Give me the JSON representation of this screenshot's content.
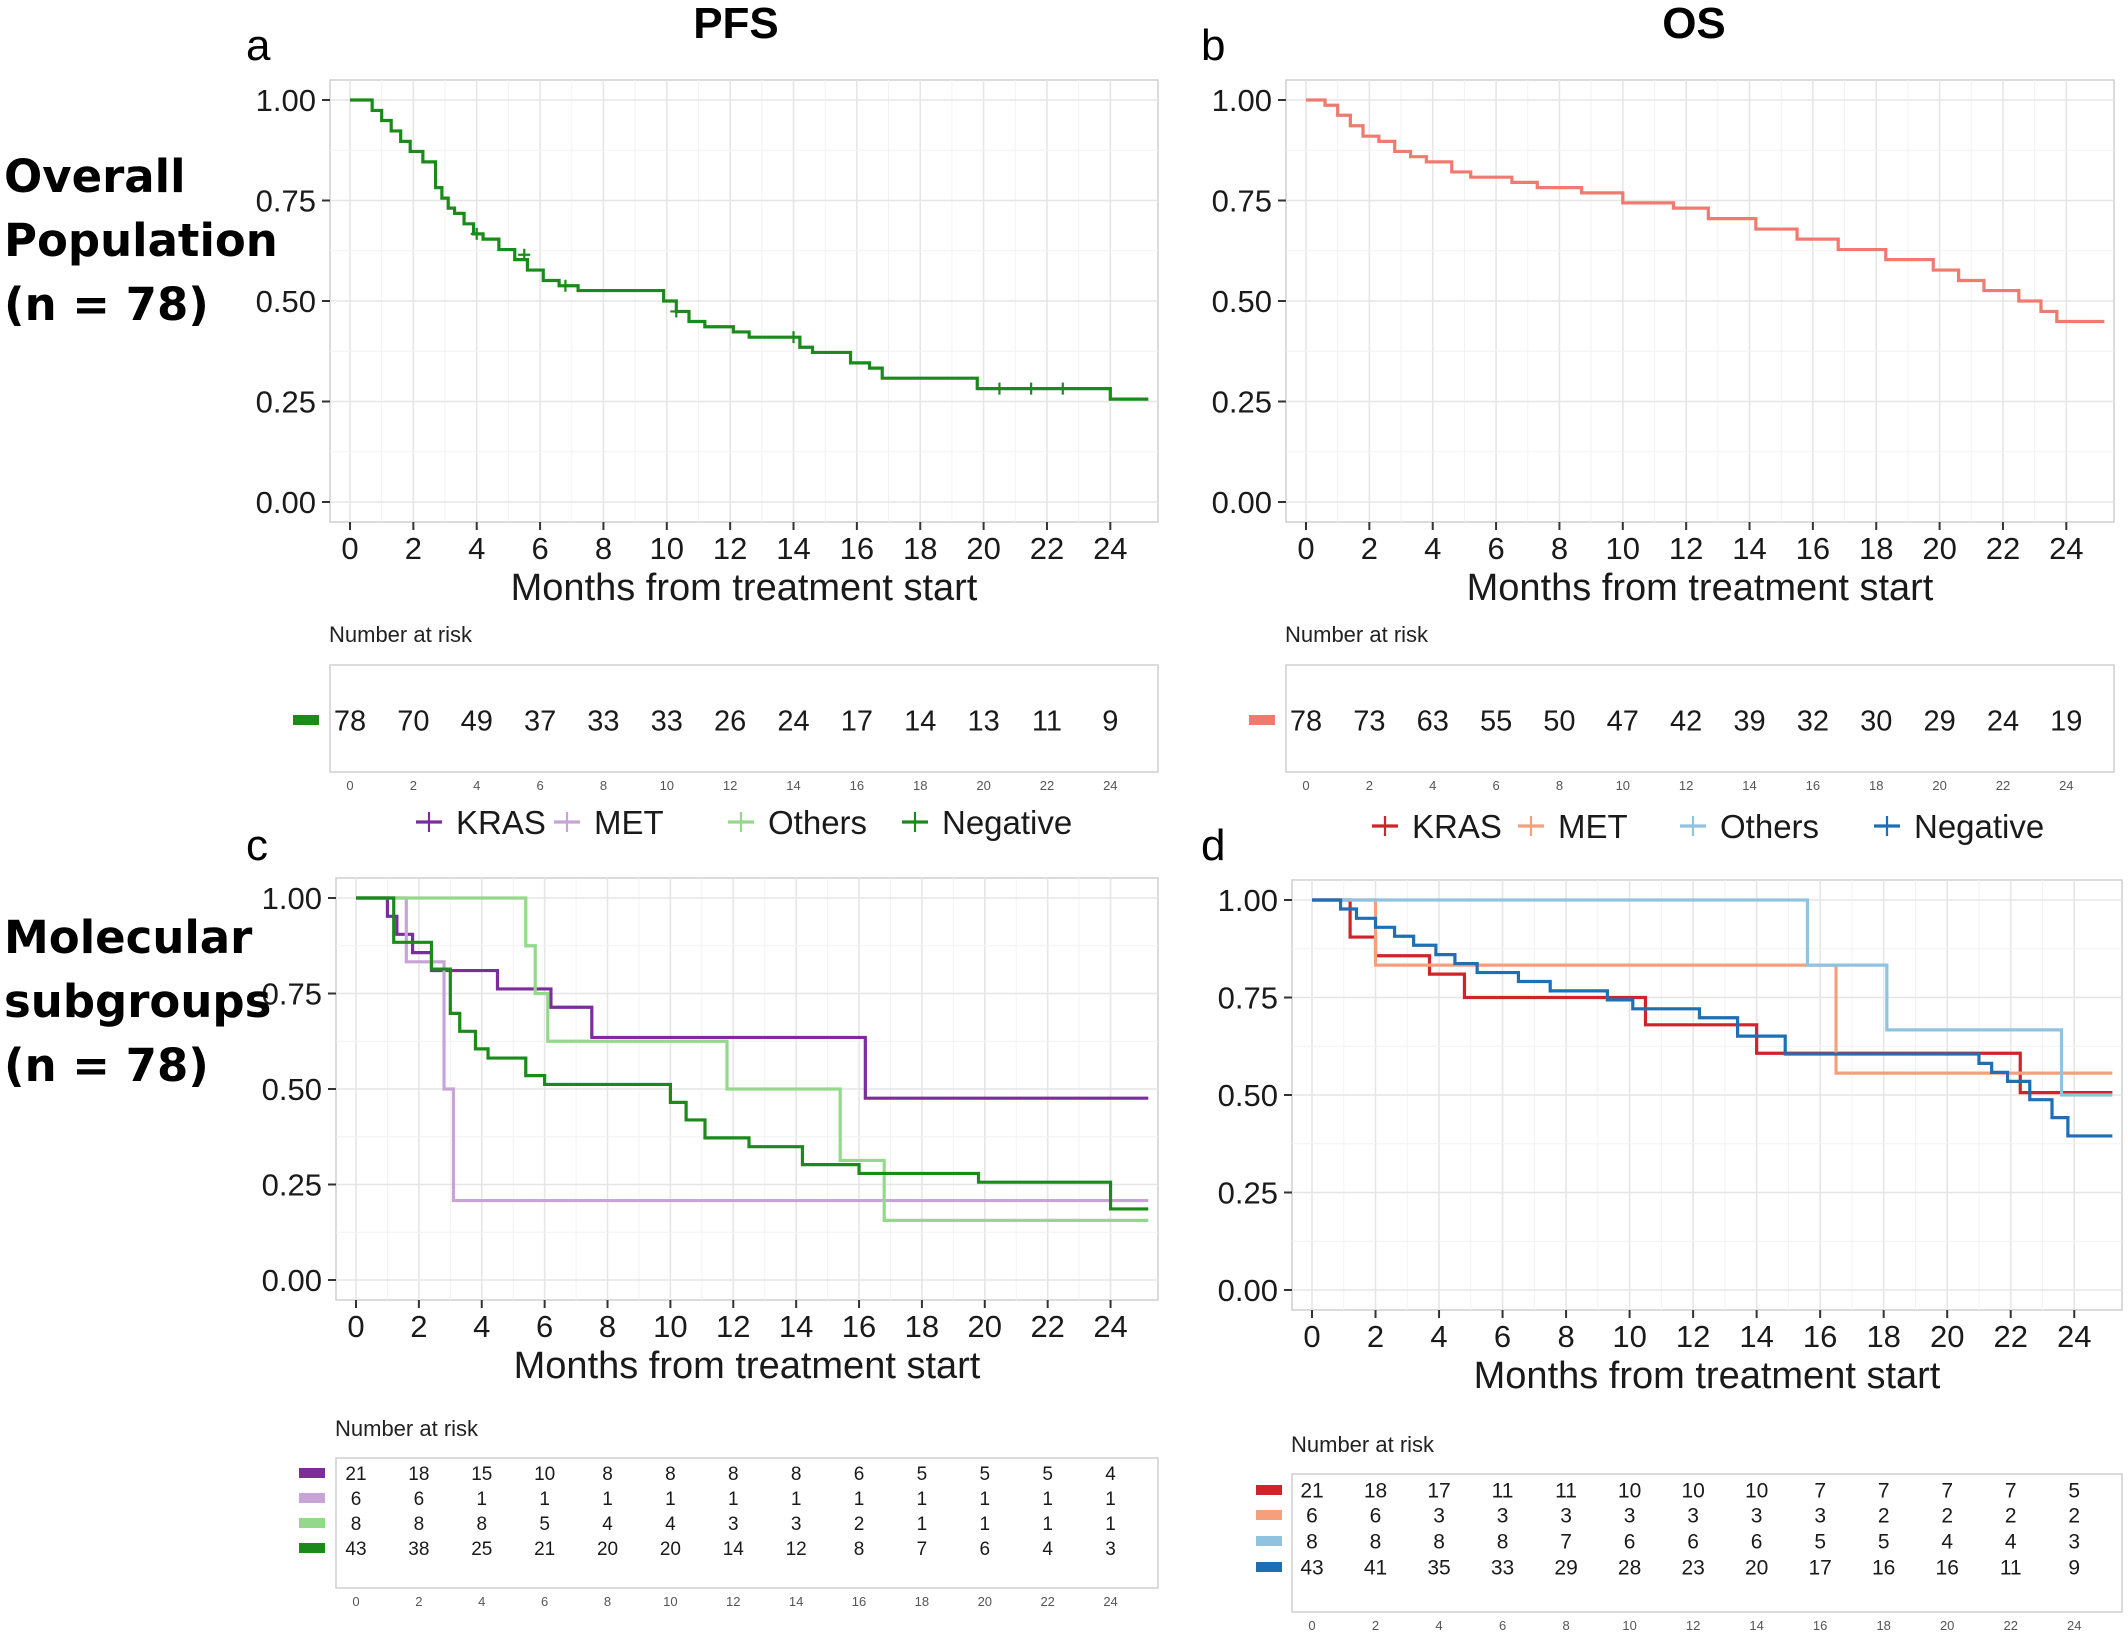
{
  "row_labels": {
    "overall": [
      "Overall",
      "Population",
      "(n = 78)"
    ],
    "molecular": [
      "Molecular",
      "subgroups",
      "(n = 78)"
    ]
  },
  "column_titles": {
    "pfs": "PFS",
    "os": "OS"
  },
  "chart_data": [
    {
      "panel": "a",
      "type": "line",
      "subtype": "kaplan-meier",
      "xlabel": "Months from treatment start",
      "ylabel": "",
      "xlim": [
        0,
        25
      ],
      "ylim": [
        0,
        1
      ],
      "x_ticks": [
        "0",
        "2",
        "4",
        "6",
        "8",
        "10",
        "12",
        "14",
        "16",
        "18",
        "20",
        "22",
        "24"
      ],
      "y_ticks": [
        "0.00",
        "0.25",
        "0.50",
        "0.75",
        "1.00"
      ],
      "grid": true,
      "legend": "none",
      "series": [
        {
          "color": "#1a8a1a",
          "x": [
            0,
            0.7,
            1,
            1.3,
            1.6,
            1.9,
            2.3,
            2.7,
            2.9,
            3.1,
            3.3,
            3.6,
            3.9,
            4.2,
            4.7,
            5.2,
            5.6,
            6.1,
            6.6,
            7.2,
            9.9,
            10.3,
            10.7,
            11.2,
            12.1,
            12.6,
            14.2,
            14.6,
            15.8,
            16.4,
            16.8,
            19.8,
            24,
            25.2
          ],
          "y": [
            1,
            0.974,
            0.949,
            0.923,
            0.897,
            0.872,
            0.846,
            0.782,
            0.756,
            0.731,
            0.718,
            0.692,
            0.667,
            0.654,
            0.628,
            0.603,
            0.577,
            0.551,
            0.538,
            0.526,
            0.5,
            0.474,
            0.449,
            0.436,
            0.423,
            0.41,
            0.385,
            0.372,
            0.346,
            0.333,
            0.308,
            0.282,
            0.256,
            0.256
          ],
          "censor_x": [
            4,
            5.5,
            6.8,
            10.3,
            14,
            20.5,
            21.5,
            22.5
          ],
          "censor_y": [
            0.667,
            0.615,
            0.538,
            0.474,
            0.41,
            0.282,
            0.282,
            0.282
          ]
        }
      ],
      "risk_table": {
        "title": "Number at risk",
        "times": [
          "0",
          "2",
          "4",
          "6",
          "8",
          "10",
          "12",
          "14",
          "16",
          "18",
          "20",
          "22",
          "24"
        ],
        "rows": [
          {
            "color": "#1a8a1a",
            "counts": [
              "78",
              "70",
              "49",
              "37",
              "33",
              "33",
              "26",
              "24",
              "17",
              "14",
              "13",
              "11",
              "9"
            ]
          }
        ]
      }
    },
    {
      "panel": "b",
      "type": "line",
      "subtype": "kaplan-meier",
      "xlabel": "Months from treatment start",
      "ylabel": "",
      "xlim": [
        0,
        25
      ],
      "ylim": [
        0,
        1
      ],
      "x_ticks": [
        "0",
        "2",
        "4",
        "6",
        "8",
        "10",
        "12",
        "14",
        "16",
        "18",
        "20",
        "22",
        "24"
      ],
      "y_ticks": [
        "0.00",
        "0.25",
        "0.50",
        "0.75",
        "1.00"
      ],
      "grid": true,
      "legend": "none",
      "series": [
        {
          "color": "#f07a6f",
          "x": [
            0,
            0.6,
            1,
            1.4,
            1.8,
            2.3,
            2.8,
            3.3,
            3.8,
            4.6,
            5.2,
            6.5,
            7.3,
            8.7,
            10,
            11.6,
            12.7,
            14.2,
            15.5,
            16.8,
            18.3,
            19.8,
            20.6,
            21.4,
            22.5,
            23.2,
            23.7,
            25.2
          ],
          "y": [
            1,
            0.987,
            0.962,
            0.936,
            0.91,
            0.897,
            0.872,
            0.859,
            0.846,
            0.821,
            0.808,
            0.795,
            0.782,
            0.769,
            0.744,
            0.731,
            0.705,
            0.679,
            0.654,
            0.628,
            0.603,
            0.577,
            0.551,
            0.526,
            0.5,
            0.474,
            0.449,
            0.449
          ]
        }
      ],
      "risk_table": {
        "title": "Number at risk",
        "times": [
          "0",
          "2",
          "4",
          "6",
          "8",
          "10",
          "12",
          "14",
          "16",
          "18",
          "20",
          "22",
          "24"
        ],
        "rows": [
          {
            "color": "#f07a6f",
            "counts": [
              "78",
              "73",
              "63",
              "55",
              "50",
              "47",
              "42",
              "39",
              "32",
              "30",
              "29",
              "24",
              "19"
            ]
          }
        ]
      }
    },
    {
      "panel": "c",
      "type": "line",
      "subtype": "kaplan-meier",
      "xlabel": "Months from treatment start",
      "ylabel": "",
      "xlim": [
        0,
        25
      ],
      "ylim": [
        0,
        1
      ],
      "x_ticks": [
        "0",
        "2",
        "4",
        "6",
        "8",
        "10",
        "12",
        "14",
        "16",
        "18",
        "20",
        "22",
        "24"
      ],
      "y_ticks": [
        "0.00",
        "0.25",
        "0.50",
        "0.75",
        "1.00"
      ],
      "grid": true,
      "legend": "top",
      "series": [
        {
          "name": "KRAS",
          "color": "#7b2d9a",
          "x": [
            0,
            1,
            1.3,
            1.8,
            2.4,
            4.5,
            6.2,
            7.5,
            16.2,
            25.2
          ],
          "y": [
            1,
            0.952,
            0.905,
            0.857,
            0.81,
            0.762,
            0.714,
            0.635,
            0.476,
            0.476
          ]
        },
        {
          "name": "MET",
          "color": "#c7a3d6",
          "x": [
            0,
            1.6,
            2.8,
            3.1,
            25.2
          ],
          "y": [
            1,
            0.833,
            0.5,
            0.208,
            0.208
          ]
        },
        {
          "name": "Others",
          "color": "#94d98b",
          "x": [
            0,
            5.4,
            5.7,
            6.1,
            11.8,
            15.4,
            16.8,
            25.2
          ],
          "y": [
            1,
            0.875,
            0.75,
            0.625,
            0.5,
            0.313,
            0.156,
            0.156
          ]
        },
        {
          "name": "Negative",
          "color": "#1a8a1a",
          "x": [
            0,
            1.2,
            2.4,
            3,
            3.3,
            3.8,
            4.2,
            5.4,
            6,
            10,
            10.5,
            11.1,
            12.5,
            14.2,
            16,
            19.8,
            24,
            25.2
          ],
          "y": [
            1,
            0.884,
            0.814,
            0.698,
            0.651,
            0.605,
            0.581,
            0.535,
            0.512,
            0.465,
            0.419,
            0.372,
            0.349,
            0.302,
            0.279,
            0.256,
            0.186,
            0.186
          ]
        }
      ],
      "risk_table": {
        "title": "Number at risk",
        "times": [
          "0",
          "2",
          "4",
          "6",
          "8",
          "10",
          "12",
          "14",
          "16",
          "18",
          "20",
          "22",
          "24"
        ],
        "rows": [
          {
            "color": "#7b2d9a",
            "counts": [
              "21",
              "18",
              "15",
              "10",
              "8",
              "8",
              "8",
              "8",
              "6",
              "5",
              "5",
              "5",
              "4"
            ]
          },
          {
            "color": "#c7a3d6",
            "counts": [
              "6",
              "6",
              "1",
              "1",
              "1",
              "1",
              "1",
              "1",
              "1",
              "1",
              "1",
              "1",
              "1"
            ]
          },
          {
            "color": "#94d98b",
            "counts": [
              "8",
              "8",
              "8",
              "5",
              "4",
              "4",
              "3",
              "3",
              "2",
              "1",
              "1",
              "1",
              "1"
            ]
          },
          {
            "color": "#1a8a1a",
            "counts": [
              "43",
              "38",
              "25",
              "21",
              "20",
              "20",
              "14",
              "12",
              "8",
              "7",
              "6",
              "4",
              "3"
            ]
          }
        ]
      }
    },
    {
      "panel": "d",
      "type": "line",
      "subtype": "kaplan-meier",
      "xlabel": "Months from treatment start",
      "ylabel": "",
      "xlim": [
        0,
        25
      ],
      "ylim": [
        0,
        1
      ],
      "x_ticks": [
        "0",
        "2",
        "4",
        "6",
        "8",
        "10",
        "12",
        "14",
        "16",
        "18",
        "20",
        "22",
        "24"
      ],
      "y_ticks": [
        "0.00",
        "0.25",
        "0.50",
        "0.75",
        "1.00"
      ],
      "grid": true,
      "legend": "top",
      "series": [
        {
          "name": "KRAS",
          "color": "#d1232a",
          "x": [
            0,
            1.2,
            2,
            3.7,
            4.8,
            10.5,
            14,
            22.3,
            25.2
          ],
          "y": [
            1,
            0.905,
            0.857,
            0.81,
            0.75,
            0.68,
            0.607,
            0.506,
            0.506
          ]
        },
        {
          "name": "MET",
          "color": "#f4a07c",
          "x": [
            0,
            2,
            16.5,
            25.2
          ],
          "y": [
            1,
            0.833,
            0.556,
            0.556
          ]
        },
        {
          "name": "Others",
          "color": "#8fc3e0",
          "x": [
            0,
            15.6,
            18.1,
            23.6,
            25.2
          ],
          "y": [
            1,
            0.833,
            0.667,
            0.5,
            0.5
          ]
        },
        {
          "name": "Negative",
          "color": "#1f6fb4",
          "x": [
            0,
            0.9,
            1.4,
            2,
            2.6,
            3.2,
            3.9,
            4.5,
            5.2,
            6.5,
            7.5,
            9.3,
            10.1,
            12.2,
            13.4,
            14.9,
            21,
            21.4,
            21.9,
            22.6,
            23.3,
            23.8,
            25.2
          ],
          "y": [
            1,
            0.977,
            0.953,
            0.93,
            0.907,
            0.884,
            0.86,
            0.837,
            0.814,
            0.791,
            0.767,
            0.744,
            0.721,
            0.698,
            0.651,
            0.605,
            0.581,
            0.558,
            0.535,
            0.488,
            0.442,
            0.395,
            0.395
          ]
        }
      ],
      "risk_table": {
        "title": "Number at risk",
        "times": [
          "0",
          "2",
          "4",
          "6",
          "8",
          "10",
          "12",
          "14",
          "16",
          "18",
          "20",
          "22",
          "24"
        ],
        "rows": [
          {
            "color": "#d1232a",
            "counts": [
              "21",
              "18",
              "17",
              "11",
              "11",
              "10",
              "10",
              "10",
              "7",
              "7",
              "7",
              "7",
              "5"
            ]
          },
          {
            "color": "#f4a07c",
            "counts": [
              "6",
              "6",
              "3",
              "3",
              "3",
              "3",
              "3",
              "3",
              "3",
              "2",
              "2",
              "2",
              "2"
            ]
          },
          {
            "color": "#8fc3e0",
            "counts": [
              "8",
              "8",
              "8",
              "8",
              "7",
              "6",
              "6",
              "6",
              "5",
              "5",
              "4",
              "4",
              "3"
            ]
          },
          {
            "color": "#1f6fb4",
            "counts": [
              "43",
              "41",
              "35",
              "33",
              "29",
              "28",
              "23",
              "20",
              "17",
              "16",
              "16",
              "11",
              "9"
            ]
          }
        ]
      }
    }
  ]
}
